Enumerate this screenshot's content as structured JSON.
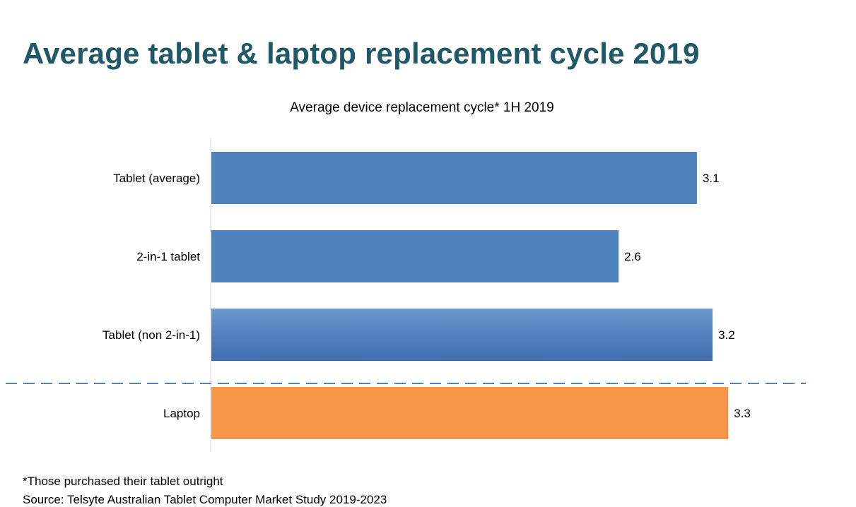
{
  "page": {
    "title": "Average tablet & laptop replacement cycle 2019"
  },
  "chart_data": {
    "type": "bar",
    "orientation": "horizontal",
    "title": "Average device replacement  cycle* 1H 2019",
    "categories": [
      "Tablet (average)",
      "2-in-1 tablet",
      "Tablet (non 2-in-1)",
      "Laptop"
    ],
    "values": [
      3.1,
      2.6,
      3.2,
      3.3
    ],
    "data_labels": [
      "3.1",
      "2.6",
      "3.2",
      "3.3"
    ],
    "xlabel": "",
    "ylabel": "",
    "xlim": [
      0,
      3.6
    ],
    "grid": false,
    "legend": "none",
    "separator": "dashed line between Tablet (non 2-in-1) and Laptop",
    "colors": {
      "tablet": "#4F81BD",
      "laptop": "#F79646",
      "separator": "#4F81BD",
      "axis": "#D9D9D9"
    },
    "bar_colors": [
      "#4F81BD",
      "#4F81BD",
      "#4F81BD",
      "#F79646"
    ]
  },
  "footnotes": {
    "note": "*Those purchased their tablet outright",
    "source": "Source: Telsyte Australian Tablet Computer Market Study 2019-2023"
  }
}
